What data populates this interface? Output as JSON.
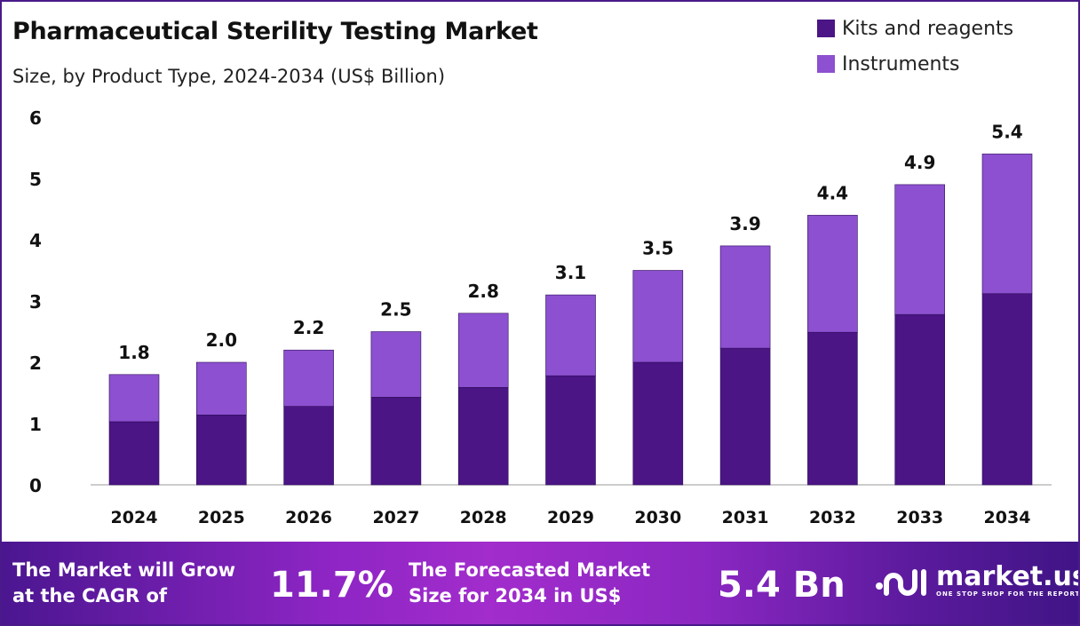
{
  "chart_data": {
    "type": "bar",
    "stacked": true,
    "title": "Pharmaceutical Sterility Testing Market",
    "subtitle": "Size, by Product Type, 2024-2034 (US$ Billion)",
    "categories": [
      "2024",
      "2025",
      "2026",
      "2027",
      "2028",
      "2029",
      "2030",
      "2031",
      "2032",
      "2033",
      "2034"
    ],
    "series": [
      {
        "name": "Kits and reagents",
        "color": "#4b1585",
        "values": [
          1.03,
          1.14,
          1.28,
          1.43,
          1.59,
          1.78,
          2.0,
          2.23,
          2.49,
          2.78,
          3.12
        ]
      },
      {
        "name": "Instruments",
        "color": "#8c50d0",
        "values": [
          0.77,
          0.86,
          0.92,
          1.07,
          1.21,
          1.32,
          1.5,
          1.67,
          1.91,
          2.12,
          2.28
        ]
      }
    ],
    "totals_labels": [
      "1.8",
      "2.0",
      "2.2",
      "2.5",
      "2.8",
      "3.1",
      "3.5",
      "3.9",
      "4.4",
      "4.9",
      "5.4"
    ],
    "ylim": [
      0,
      6
    ],
    "yticks": [
      "0",
      "1",
      "2",
      "3",
      "4",
      "5",
      "6"
    ],
    "xlabel": "",
    "ylabel": "",
    "grid": false,
    "legend_position": "top-right"
  },
  "footer": {
    "cagr_text": "The Market will Grow at the CAGR of",
    "cagr_line1": "The Market will Grow",
    "cagr_line2": "at the CAGR of",
    "cagr_value": "11.7%",
    "forecast_line1": "The Forecasted Market",
    "forecast_line2": "Size for 2034 in US$",
    "forecast_value": "5.4 Bn",
    "logo_name": "market.us",
    "logo_tagline": "ONE STOP SHOP FOR THE REPORTS"
  }
}
